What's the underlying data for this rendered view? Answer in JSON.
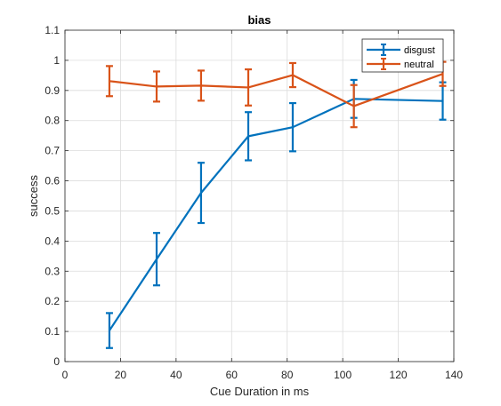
{
  "chart_data": {
    "type": "line",
    "title": "bias",
    "xlabel": "Cue Duration in ms",
    "ylabel": "success",
    "xlim": [
      0,
      140
    ],
    "ylim": [
      0,
      1.1
    ],
    "xticks": [
      0,
      20,
      40,
      60,
      80,
      100,
      120,
      140
    ],
    "xtick_labels": [
      "0",
      "20",
      "40",
      "60",
      "80",
      "100",
      "120",
      "140"
    ],
    "yticks": [
      0,
      0.1,
      0.2,
      0.3,
      0.4,
      0.5,
      0.6,
      0.7,
      0.8,
      0.9,
      1,
      1.1
    ],
    "ytick_labels": [
      "0",
      "0.1",
      "0.2",
      "0.3",
      "0.4",
      "0.5",
      "0.6",
      "0.7",
      "0.8",
      "0.9",
      "1",
      "1.1"
    ],
    "grid": true,
    "legend_position": "top-right",
    "error_bars": true,
    "series": [
      {
        "name": "disgust",
        "color": "#0072bd",
        "x": [
          16,
          33,
          49,
          66,
          82,
          104,
          136
        ],
        "y": [
          0.103,
          0.34,
          0.56,
          0.748,
          0.778,
          0.872,
          0.865
        ],
        "err": [
          0.058,
          0.087,
          0.1,
          0.08,
          0.08,
          0.063,
          0.062
        ]
      },
      {
        "name": "neutral",
        "color": "#d95319",
        "x": [
          16,
          33,
          49,
          66,
          82,
          104,
          136
        ],
        "y": [
          0.931,
          0.913,
          0.916,
          0.91,
          0.951,
          0.848,
          0.955
        ],
        "err": [
          0.05,
          0.05,
          0.05,
          0.06,
          0.04,
          0.07,
          0.04
        ]
      }
    ]
  }
}
